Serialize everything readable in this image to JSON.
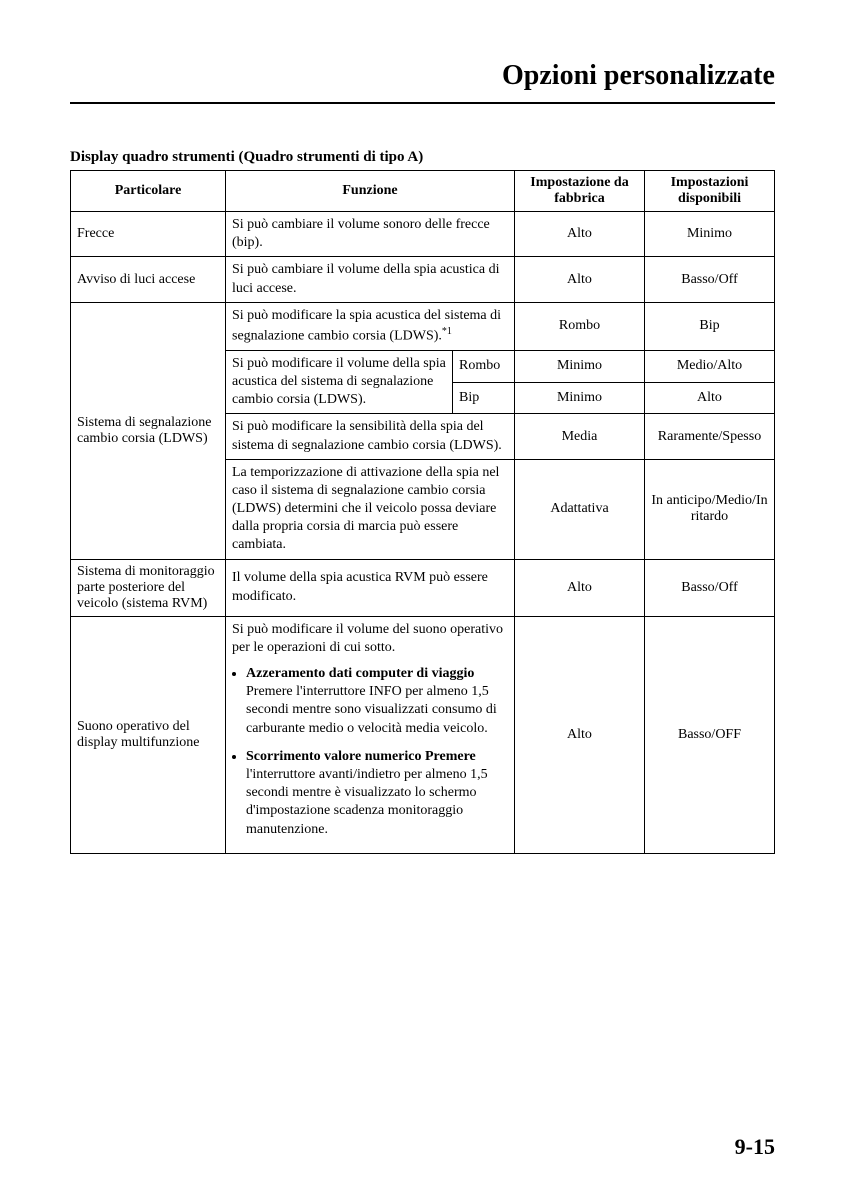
{
  "page": {
    "title": "Opzioni personalizzate",
    "number": "9-15"
  },
  "table": {
    "title": "Display quadro strumenti (Quadro strumenti di tipo A)",
    "headers": {
      "col1": "Particolare",
      "col2": "Funzione",
      "col3": "Impostazione da fabbrica",
      "col4": "Impostazioni disponibili"
    },
    "rows": {
      "row1": {
        "particolare": "Frecce",
        "funzione": "Si può cambiare il volume sonoro delle frecce (bip).",
        "fabbrica": "Alto",
        "disponibili": "Minimo"
      },
      "row2": {
        "particolare": "Avviso di luci accese",
        "funzione": "Si può cambiare il volume della spia acustica di luci accese.",
        "fabbrica": "Alto",
        "disponibili": "Basso/Off"
      },
      "row3": {
        "particolare": "Sistema di segnalazione cambio corsia (LDWS)",
        "sub1": {
          "funzione": "Si può modificare la spia acustica del sistema di segnalazione cambio corsia (LDWS).",
          "footnote": "*1",
          "fabbrica": "Rombo",
          "disponibili": "Bip"
        },
        "sub2": {
          "funzione": "Si può modificare il volume della spia acustica del sistema di segnalazione cambio corsia (LDWS).",
          "label1": "Rombo",
          "fabbrica1": "Minimo",
          "disponibili1": "Medio/Alto",
          "label2": "Bip",
          "fabbrica2": "Minimo",
          "disponibili2": "Alto"
        },
        "sub3": {
          "funzione": "Si può modificare la sensibilità della spia del sistema di segnalazione cambio corsia (LDWS).",
          "fabbrica": "Media",
          "disponibili": "Raramente/Spesso"
        },
        "sub4": {
          "funzione": "La temporizzazione di attivazione della spia nel caso il sistema di segnalazione cambio corsia (LDWS) determini che il veicolo possa deviare dalla propria corsia di marcia può essere cambiata.",
          "fabbrica": "Adattativa",
          "disponibili": "In anticipo/Medio/In ritardo"
        }
      },
      "row4": {
        "particolare": "Sistema di monitoraggio parte posteriore del veicolo (sistema RVM)",
        "funzione": "Il volume della spia acustica RVM può essere modificato.",
        "fabbrica": "Alto",
        "disponibili": "Basso/Off"
      },
      "row5": {
        "particolare": "Suono operativo del display multifunzione",
        "funzione_intro": "Si può modificare il volume del suono operativo per le operazioni di cui sotto.",
        "bullet1_bold": "Azzeramento dati computer di viaggio",
        "bullet1_text": "Premere l'interruttore INFO per almeno 1,5 secondi mentre sono visualizzati consumo di carburante medio o velocità media veicolo.",
        "bullet2_bold": "Scorrimento valore numerico Premere",
        "bullet2_text": "l'interruttore avanti/indietro per almeno 1,5 secondi mentre è visualizzato lo schermo d'impostazione scadenza monitoraggio manutenzione.",
        "fabbrica": "Alto",
        "disponibili": "Basso/OFF"
      }
    }
  }
}
